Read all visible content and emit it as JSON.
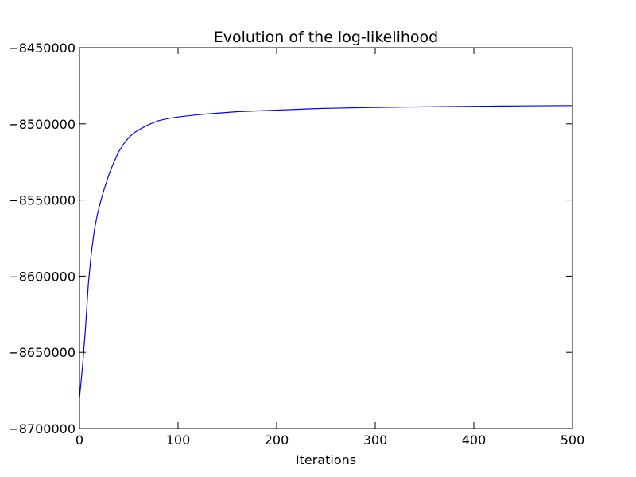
{
  "chart_data": {
    "type": "line",
    "title": "Evolution of the log-likelihood",
    "xlabel": "Iterations",
    "ylabel": "",
    "xlim": [
      0,
      500
    ],
    "ylim": [
      -8700000,
      -8450000
    ],
    "xticks": [
      0,
      100,
      200,
      300,
      400,
      500
    ],
    "yticks": [
      -8700000,
      -8650000,
      -8600000,
      -8550000,
      -8500000,
      -8450000
    ],
    "xtick_labels": [
      "0",
      "100",
      "200",
      "300",
      "400",
      "500"
    ],
    "ytick_labels": [
      "−8700000",
      "−8650000",
      "−8600000",
      "−8550000",
      "−8500000",
      "−8450000"
    ],
    "grid": false,
    "series": [
      {
        "color": "#0000ff",
        "x": [
          0,
          3,
          6,
          9,
          12,
          15,
          18,
          21,
          25,
          30,
          35,
          40,
          45,
          50,
          55,
          60,
          70,
          80,
          90,
          100,
          120,
          140,
          160,
          180,
          200,
          220,
          240,
          260,
          280,
          300,
          350,
          400,
          450,
          500
        ],
        "y": [
          -8680000,
          -8660000,
          -8635000,
          -8605000,
          -8585000,
          -8570000,
          -8560000,
          -8552000,
          -8543000,
          -8533000,
          -8525000,
          -8518000,
          -8513000,
          -8509000,
          -8506000,
          -8504000,
          -8500500,
          -8498000,
          -8496500,
          -8495500,
          -8494000,
          -8493000,
          -8492000,
          -8491500,
          -8491000,
          -8490500,
          -8490000,
          -8489700,
          -8489400,
          -8489200,
          -8488800,
          -8488500,
          -8488200,
          -8488000
        ]
      }
    ]
  }
}
